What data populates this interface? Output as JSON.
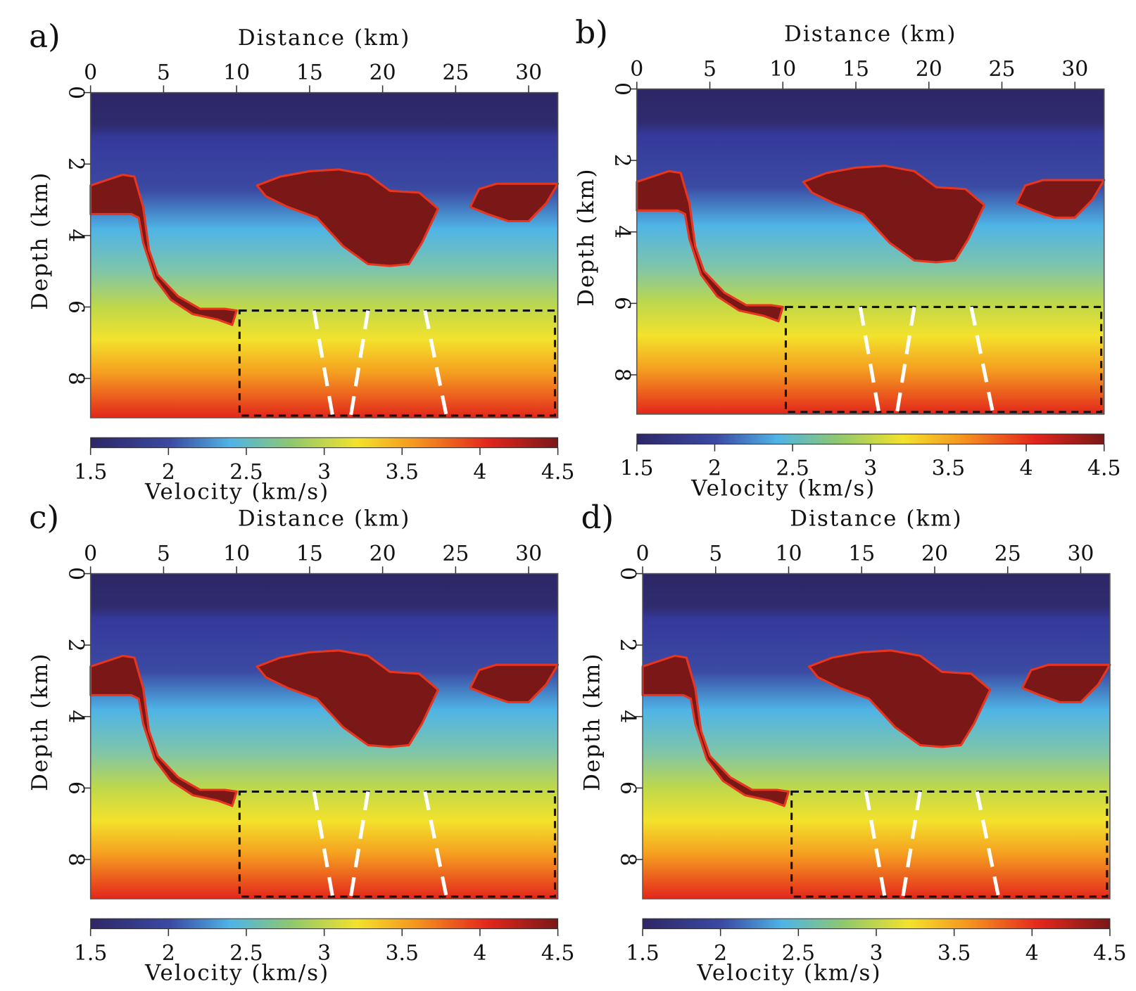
{
  "chart_data": {
    "type": "heatmap",
    "x_axis": {
      "label": "Distance (km)",
      "ticks": [
        0,
        5,
        10,
        15,
        20,
        25,
        30
      ],
      "range": [
        0,
        32
      ]
    },
    "y_axis": {
      "label": "Depth (km)",
      "ticks": [
        0,
        2,
        4,
        6,
        8
      ],
      "range": [
        0,
        9.1
      ],
      "inverted": true
    },
    "colorbar": {
      "label": "Velocity (km/s)",
      "ticks": [
        "1.5",
        "2",
        "2.5",
        "3",
        "3.5",
        "4",
        "4.5"
      ],
      "range": [
        1.5,
        4.5
      ],
      "colormap": [
        "#2d2766",
        "#3b4aa3",
        "#4fb4e6",
        "#8ec86e",
        "#f3e22c",
        "#f5931e",
        "#e3261c",
        "#7a1818"
      ]
    },
    "highlight_box": {
      "x": [
        10.2,
        32
      ],
      "depth": [
        6.1,
        9.1
      ],
      "style": "black dashed"
    },
    "fault_lines": [
      {
        "from": [
          15.3,
          6.1
        ],
        "to": [
          16.6,
          9.1
        ]
      },
      {
        "from": [
          19.0,
          6.1
        ],
        "to": [
          17.8,
          9.1
        ]
      },
      {
        "from": [
          22.9,
          6.1
        ],
        "to": [
          24.4,
          9.1
        ]
      }
    ],
    "panels": [
      {
        "label": "a)"
      },
      {
        "label": "b)"
      },
      {
        "label": "c)"
      },
      {
        "label": "d)"
      }
    ]
  }
}
